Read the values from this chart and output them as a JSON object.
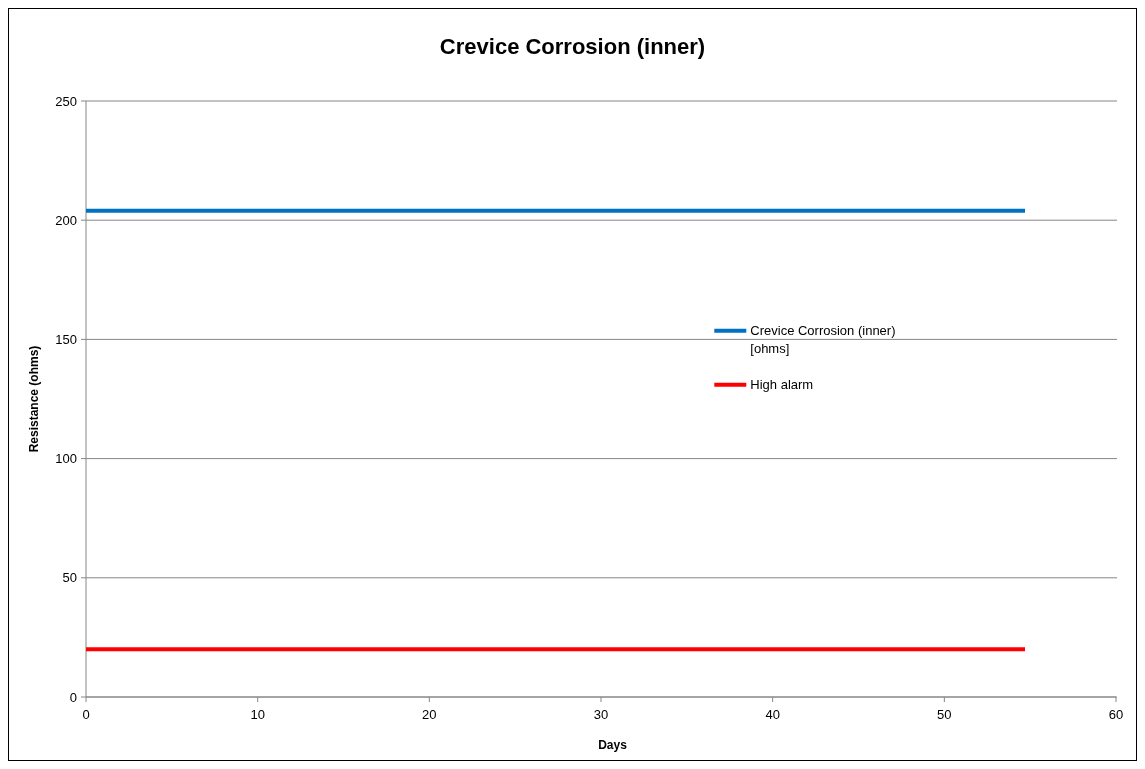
{
  "chart_data": {
    "type": "line",
    "title": "Crevice Corrosion (inner)",
    "xlabel": "Days",
    "ylabel": "Resistance (ohms)",
    "x": [
      0,
      54.7
    ],
    "series": [
      {
        "name": "Crevice Corrosion (inner) [ohms]",
        "color": "#0070c0",
        "values": [
          204,
          204
        ]
      },
      {
        "name": "High alarm",
        "color": "#ff0000",
        "values": [
          20,
          20
        ]
      }
    ],
    "xlim": [
      0,
      60
    ],
    "xticks": [
      0,
      10,
      20,
      30,
      40,
      50,
      60
    ],
    "ylim": [
      0,
      250
    ],
    "yticks": [
      0,
      50,
      100,
      150,
      200,
      250
    ],
    "grid": "y",
    "legend": "right",
    "marker": "none",
    "line_style": "solid"
  }
}
